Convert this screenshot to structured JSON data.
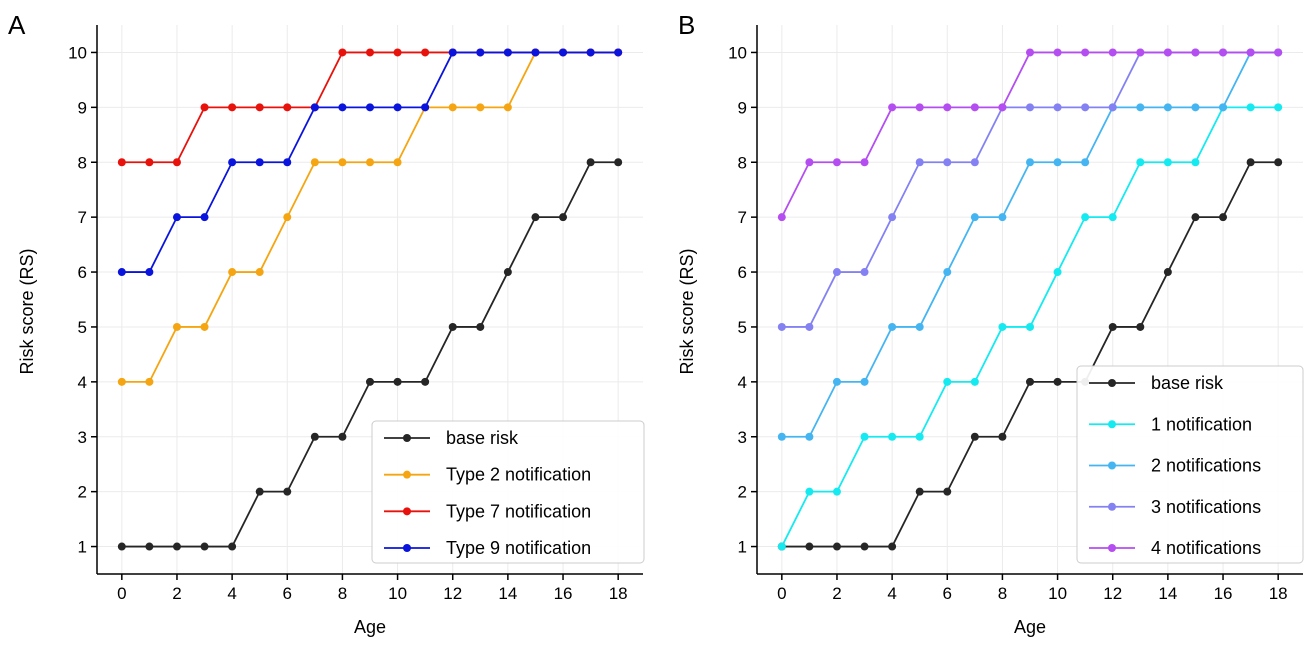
{
  "figure_labels": [
    "A",
    "B"
  ],
  "chart_data": [
    {
      "panel": "A",
      "type": "line",
      "title": "",
      "xlabel": "Age",
      "ylabel": "Risk score (RS)",
      "xlim": [
        -0.9,
        18.9
      ],
      "ylim": [
        0.5,
        10.5
      ],
      "xticks": [
        0,
        2,
        4,
        6,
        8,
        10,
        12,
        14,
        16,
        18
      ],
      "yticks": [
        1,
        2,
        3,
        4,
        5,
        6,
        7,
        8,
        9,
        10
      ],
      "grid": true,
      "legend_position": "lower-right",
      "x": [
        0,
        1,
        2,
        3,
        4,
        5,
        6,
        7,
        8,
        9,
        10,
        11,
        12,
        13,
        14,
        15,
        16,
        17,
        18
      ],
      "series": [
        {
          "name": "base risk",
          "color": "#262626",
          "values": [
            1,
            1,
            1,
            1,
            1,
            2,
            2,
            3,
            3,
            4,
            4,
            4,
            5,
            5,
            6,
            7,
            7,
            8,
            8
          ]
        },
        {
          "name": "Type 2 notification",
          "color": "#f5a511",
          "values": [
            4,
            4,
            5,
            5,
            6,
            6,
            7,
            8,
            8,
            8,
            8,
            9,
            9,
            9,
            9,
            10,
            10,
            10,
            10
          ]
        },
        {
          "name": "Type 7 notification",
          "color": "#e8120c",
          "values": [
            8,
            8,
            8,
            9,
            9,
            9,
            9,
            9,
            10,
            10,
            10,
            10,
            10,
            10,
            10,
            10,
            10,
            10,
            10
          ]
        },
        {
          "name": "Type 9 notification",
          "color": "#0a14dc",
          "values": [
            6,
            6,
            7,
            7,
            8,
            8,
            8,
            9,
            9,
            9,
            9,
            9,
            10,
            10,
            10,
            10,
            10,
            10,
            10
          ]
        }
      ]
    },
    {
      "panel": "B",
      "type": "line",
      "title": "",
      "xlabel": "Age",
      "ylabel": "Risk score (RS)",
      "xlim": [
        -0.9,
        18.9
      ],
      "ylim": [
        0.5,
        10.5
      ],
      "xticks": [
        0,
        2,
        4,
        6,
        8,
        10,
        12,
        14,
        16,
        18
      ],
      "yticks": [
        1,
        2,
        3,
        4,
        5,
        6,
        7,
        8,
        9,
        10
      ],
      "grid": true,
      "legend_position": "lower-right",
      "x": [
        0,
        1,
        2,
        3,
        4,
        5,
        6,
        7,
        8,
        9,
        10,
        11,
        12,
        13,
        14,
        15,
        16,
        17,
        18
      ],
      "series": [
        {
          "name": "base risk",
          "color": "#262626",
          "values": [
            1,
            1,
            1,
            1,
            1,
            2,
            2,
            3,
            3,
            4,
            4,
            4,
            5,
            5,
            6,
            7,
            7,
            8,
            8
          ]
        },
        {
          "name": "1 notification",
          "color": "#14eaf0",
          "values": [
            1,
            2,
            2,
            3,
            3,
            3,
            4,
            4,
            5,
            5,
            6,
            7,
            7,
            8,
            8,
            8,
            9,
            9,
            9
          ]
        },
        {
          "name": "2 notifications",
          "color": "#45b5f2",
          "values": [
            3,
            3,
            4,
            4,
            5,
            5,
            6,
            7,
            7,
            8,
            8,
            8,
            9,
            9,
            9,
            9,
            9,
            10,
            10
          ]
        },
        {
          "name": "3 notifications",
          "color": "#8482f2",
          "values": [
            5,
            5,
            6,
            6,
            7,
            8,
            8,
            8,
            9,
            9,
            9,
            9,
            9,
            10,
            10,
            10,
            10,
            10,
            10
          ]
        },
        {
          "name": "4 notifications",
          "color": "#b44ef0",
          "values": [
            7,
            8,
            8,
            8,
            9,
            9,
            9,
            9,
            9,
            10,
            10,
            10,
            10,
            10,
            10,
            10,
            10,
            10,
            10
          ]
        }
      ]
    }
  ]
}
